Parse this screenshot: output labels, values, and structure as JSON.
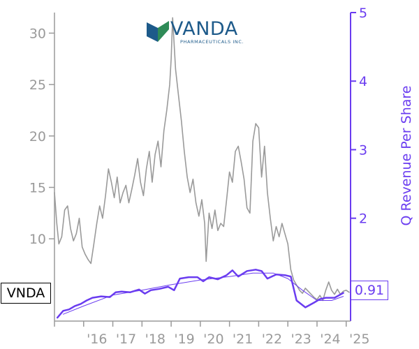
{
  "ticker": "VNDA",
  "last_value_label": "0.91",
  "logo": {
    "word": "VANDA",
    "sub": "PHARMACEUTICALS INC."
  },
  "colors": {
    "price": "#9a9a9a",
    "revenue": "#6a3cf0",
    "trend": "#6a3cf0",
    "logo_blue": "#1d5a8a",
    "logo_green": "#2e8b57"
  },
  "chart_data": {
    "type": "line",
    "title": "",
    "xlabel": "",
    "ylabel_left": "",
    "ylabel_right": "Q Revenue Per Share",
    "x_range": [
      2015.0,
      2025.15
    ],
    "x_tick_values": [
      2016,
      2017,
      2018,
      2019,
      2020,
      2021,
      2022,
      2023,
      2024,
      2025
    ],
    "x_tick_labels": [
      "'16",
      "'17",
      "'18",
      "'19",
      "'20",
      "'21",
      "'22",
      "'23",
      "'24",
      "'25"
    ],
    "ylim_left": [
      2,
      32
    ],
    "y_left_ticks": [
      10,
      15,
      20,
      25,
      30
    ],
    "ylim_right": [
      0.5,
      5
    ],
    "y_right_ticks": [
      2,
      3,
      4,
      5
    ],
    "grid": false,
    "series": [
      {
        "name": "VNDA",
        "axis": "left",
        "x": [
          2015.0,
          2015.08,
          2015.15,
          2015.25,
          2015.35,
          2015.45,
          2015.55,
          2015.65,
          2015.75,
          2015.85,
          2015.95,
          2016.05,
          2016.15,
          2016.25,
          2016.35,
          2016.45,
          2016.55,
          2016.65,
          2016.75,
          2016.85,
          2016.95,
          2017.05,
          2017.15,
          2017.25,
          2017.35,
          2017.45,
          2017.55,
          2017.65,
          2017.75,
          2017.85,
          2017.95,
          2018.05,
          2018.15,
          2018.25,
          2018.35,
          2018.45,
          2018.55,
          2018.65,
          2018.75,
          2018.85,
          2018.95,
          2019.0,
          2019.05,
          2019.1,
          2019.15,
          2019.25,
          2019.35,
          2019.45,
          2019.55,
          2019.65,
          2019.75,
          2019.85,
          2019.95,
          2020.05,
          2020.15,
          2020.2,
          2020.3,
          2020.4,
          2020.5,
          2020.6,
          2020.7,
          2020.8,
          2020.9,
          2021.0,
          2021.1,
          2021.2,
          2021.3,
          2021.4,
          2021.5,
          2021.6,
          2021.7,
          2021.8,
          2021.9,
          2022.0,
          2022.1,
          2022.2,
          2022.3,
          2022.4,
          2022.5,
          2022.6,
          2022.7,
          2022.8,
          2022.9,
          2023.0,
          2023.1,
          2023.2,
          2023.3,
          2023.4,
          2023.5,
          2023.6,
          2023.7,
          2023.8,
          2023.9,
          2024.0,
          2024.1,
          2024.2,
          2024.3,
          2024.4,
          2024.5,
          2024.6,
          2024.7,
          2024.8,
          2024.9,
          2025.0,
          2025.1
        ],
        "y": [
          14.5,
          11.5,
          9.5,
          10.2,
          12.8,
          13.2,
          11.0,
          9.8,
          10.5,
          12.0,
          9.2,
          8.5,
          8.0,
          7.6,
          9.5,
          11.5,
          13.2,
          12.0,
          14.2,
          16.8,
          15.5,
          14.0,
          16.0,
          13.5,
          14.5,
          15.2,
          13.5,
          14.8,
          16.2,
          17.8,
          15.5,
          14.2,
          16.8,
          18.5,
          15.5,
          18.2,
          19.5,
          17.0,
          20.5,
          22.5,
          25.0,
          27.5,
          31.5,
          29.0,
          26.5,
          24.0,
          21.5,
          18.5,
          16.0,
          14.5,
          15.8,
          13.5,
          12.2,
          13.8,
          11.5,
          7.8,
          12.5,
          11.0,
          12.8,
          10.8,
          11.5,
          11.2,
          13.8,
          16.5,
          15.5,
          18.5,
          19.0,
          17.5,
          15.8,
          13.0,
          12.5,
          19.5,
          21.2,
          20.8,
          16.0,
          19.0,
          14.5,
          12.0,
          9.8,
          11.2,
          10.2,
          11.5,
          10.5,
          9.5,
          7.0,
          6.0,
          5.5,
          5.0,
          4.7,
          5.2,
          4.9,
          4.6,
          4.3,
          4.1,
          4.5,
          4.0,
          5.0,
          5.8,
          5.0,
          4.6,
          5.1,
          4.6,
          4.9,
          5.0,
          4.8
        ]
      },
      {
        "name": "Q Revenue Per Share",
        "axis": "right",
        "x": [
          2015.1,
          2015.3,
          2015.5,
          2015.7,
          2015.9,
          2016.1,
          2016.3,
          2016.6,
          2016.9,
          2017.1,
          2017.3,
          2017.6,
          2017.9,
          2018.1,
          2018.3,
          2018.6,
          2018.9,
          2019.1,
          2019.3,
          2019.6,
          2019.9,
          2020.1,
          2020.3,
          2020.6,
          2020.9,
          2021.1,
          2021.3,
          2021.6,
          2021.9,
          2022.1,
          2022.3,
          2022.6,
          2022.9,
          2023.1,
          2023.3,
          2023.6,
          2023.9,
          2024.1,
          2024.3,
          2024.6,
          2024.9
        ],
        "values": [
          0.55,
          0.65,
          0.67,
          0.72,
          0.75,
          0.8,
          0.84,
          0.86,
          0.85,
          0.92,
          0.93,
          0.92,
          0.96,
          0.9,
          0.95,
          0.97,
          1.0,
          0.95,
          1.12,
          1.14,
          1.14,
          1.08,
          1.14,
          1.11,
          1.17,
          1.24,
          1.15,
          1.23,
          1.25,
          1.23,
          1.12,
          1.18,
          1.17,
          1.15,
          0.8,
          0.7,
          0.77,
          0.82,
          0.84,
          0.84,
          0.91
        ]
      },
      {
        "name": "trend",
        "axis": "right",
        "x": [
          2015.3,
          2016.0,
          2017.0,
          2018.0,
          2019.0,
          2020.0,
          2021.0,
          2021.8,
          2022.5,
          2023.0,
          2023.5,
          2024.0,
          2024.5,
          2024.9
        ],
        "values": [
          0.6,
          0.72,
          0.88,
          0.95,
          1.03,
          1.1,
          1.15,
          1.2,
          1.2,
          1.12,
          0.95,
          0.8,
          0.8,
          0.86
        ]
      }
    ]
  }
}
